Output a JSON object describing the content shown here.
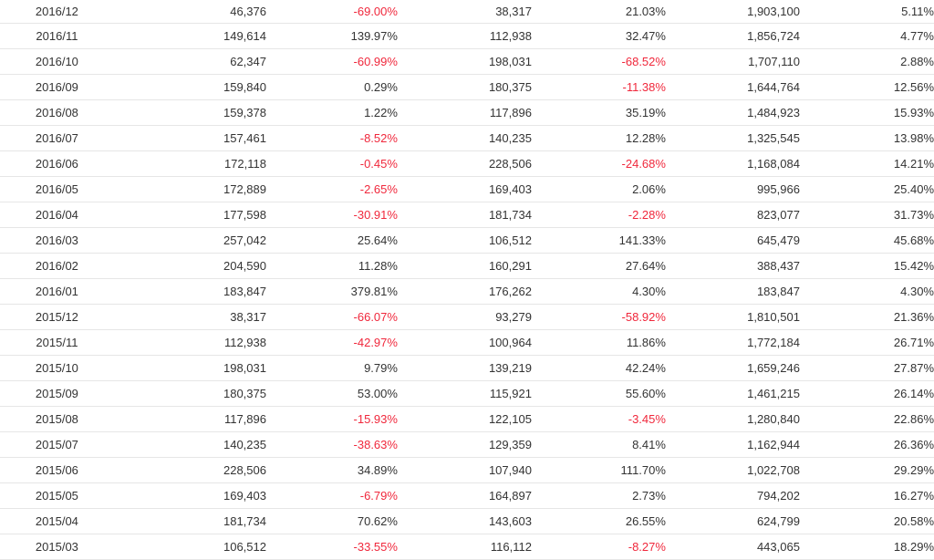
{
  "rows": [
    [
      "2016/12",
      "46,376",
      "-69.00%",
      "38,317",
      "21.03%",
      "1,903,100",
      "5.11%"
    ],
    [
      "2016/11",
      "149,614",
      "139.97%",
      "112,938",
      "32.47%",
      "1,856,724",
      "4.77%"
    ],
    [
      "2016/10",
      "62,347",
      "-60.99%",
      "198,031",
      "-68.52%",
      "1,707,110",
      "2.88%"
    ],
    [
      "2016/09",
      "159,840",
      "0.29%",
      "180,375",
      "-11.38%",
      "1,644,764",
      "12.56%"
    ],
    [
      "2016/08",
      "159,378",
      "1.22%",
      "117,896",
      "35.19%",
      "1,484,923",
      "15.93%"
    ],
    [
      "2016/07",
      "157,461",
      "-8.52%",
      "140,235",
      "12.28%",
      "1,325,545",
      "13.98%"
    ],
    [
      "2016/06",
      "172,118",
      "-0.45%",
      "228,506",
      "-24.68%",
      "1,168,084",
      "14.21%"
    ],
    [
      "2016/05",
      "172,889",
      "-2.65%",
      "169,403",
      "2.06%",
      "995,966",
      "25.40%"
    ],
    [
      "2016/04",
      "177,598",
      "-30.91%",
      "181,734",
      "-2.28%",
      "823,077",
      "31.73%"
    ],
    [
      "2016/03",
      "257,042",
      "25.64%",
      "106,512",
      "141.33%",
      "645,479",
      "45.68%"
    ],
    [
      "2016/02",
      "204,590",
      "11.28%",
      "160,291",
      "27.64%",
      "388,437",
      "15.42%"
    ],
    [
      "2016/01",
      "183,847",
      "379.81%",
      "176,262",
      "4.30%",
      "183,847",
      "4.30%"
    ],
    [
      "2015/12",
      "38,317",
      "-66.07%",
      "93,279",
      "-58.92%",
      "1,810,501",
      "21.36%"
    ],
    [
      "2015/11",
      "112,938",
      "-42.97%",
      "100,964",
      "11.86%",
      "1,772,184",
      "26.71%"
    ],
    [
      "2015/10",
      "198,031",
      "9.79%",
      "139,219",
      "42.24%",
      "1,659,246",
      "27.87%"
    ],
    [
      "2015/09",
      "180,375",
      "53.00%",
      "115,921",
      "55.60%",
      "1,461,215",
      "26.14%"
    ],
    [
      "2015/08",
      "117,896",
      "-15.93%",
      "122,105",
      "-3.45%",
      "1,280,840",
      "22.86%"
    ],
    [
      "2015/07",
      "140,235",
      "-38.63%",
      "129,359",
      "8.41%",
      "1,162,944",
      "26.36%"
    ],
    [
      "2015/06",
      "228,506",
      "34.89%",
      "107,940",
      "111.70%",
      "1,022,708",
      "29.29%"
    ],
    [
      "2015/05",
      "169,403",
      "-6.79%",
      "164,897",
      "2.73%",
      "794,202",
      "16.27%"
    ],
    [
      "2015/04",
      "181,734",
      "70.62%",
      "143,603",
      "26.55%",
      "624,799",
      "20.58%"
    ],
    [
      "2015/03",
      "106,512",
      "-33.55%",
      "116,112",
      "-8.27%",
      "443,065",
      "18.29%"
    ]
  ],
  "colors": {
    "text": "#333333",
    "negative": "#f0283c",
    "row_border": "#e6e6e6"
  }
}
